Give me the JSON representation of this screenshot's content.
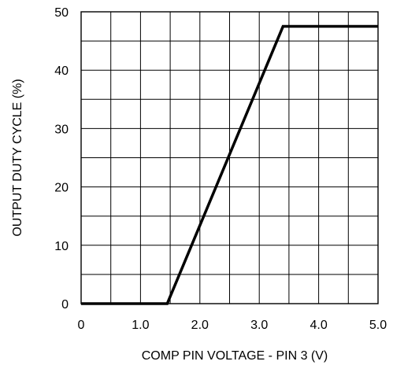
{
  "chart_data": {
    "type": "line",
    "title": "",
    "xlabel": "COMP PIN VOLTAGE - PIN 3 (V)",
    "ylabel": "OUTPUT DUTY CYCLE (%)",
    "xlim": [
      0,
      5.0
    ],
    "ylim": [
      0,
      50
    ],
    "x_major_ticks": [
      0,
      1.0,
      2.0,
      3.0,
      4.0,
      5.0
    ],
    "x_tick_labels": [
      "0",
      "1.0",
      "2.0",
      "3.0",
      "4.0",
      "5.0"
    ],
    "x_minor_ticks": [
      0.5,
      1.5,
      2.5,
      3.5,
      4.5
    ],
    "y_major_ticks": [
      0,
      10,
      20,
      30,
      40,
      50
    ],
    "y_tick_labels": [
      "0",
      "10",
      "20",
      "30",
      "40",
      "50"
    ],
    "y_minor_ticks": [
      5,
      15,
      25,
      35,
      45
    ],
    "grid": true,
    "legend": "none",
    "series": [
      {
        "x": [
          0,
          1.45,
          3.4,
          5.0
        ],
        "y": [
          0,
          0,
          47.5,
          47.5
        ],
        "color": "#000000"
      }
    ]
  }
}
